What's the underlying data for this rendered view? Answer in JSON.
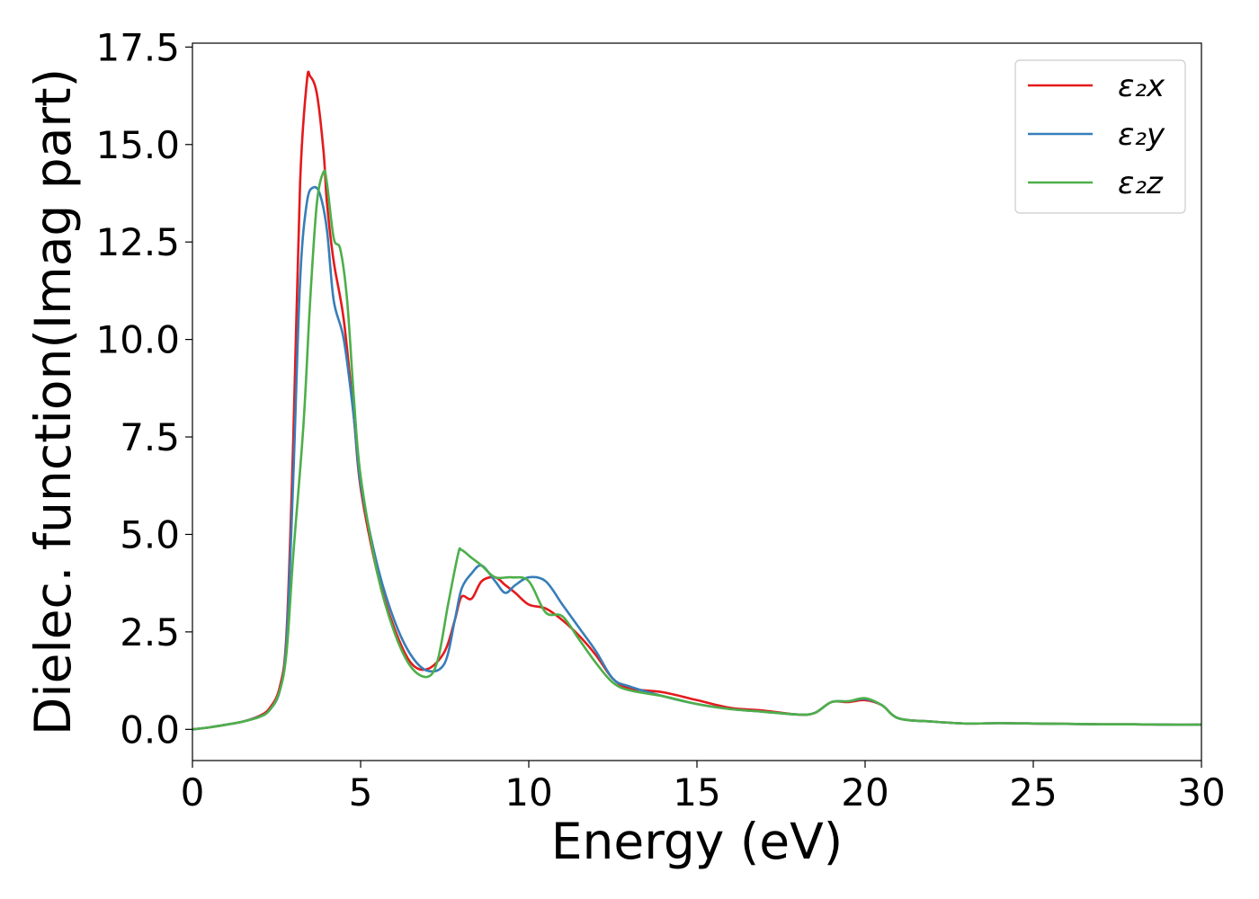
{
  "chart_data": {
    "type": "line",
    "title": "",
    "xlabel": "Energy (eV)",
    "ylabel": "Dielec. function(Imag part)",
    "xlim": [
      0,
      30
    ],
    "ylim": [
      -0.8,
      17.6
    ],
    "xticks": [
      0,
      5,
      10,
      15,
      20,
      25,
      30
    ],
    "xtick_labels": [
      "0",
      "5",
      "10",
      "15",
      "20",
      "25",
      "30"
    ],
    "yticks": [
      0.0,
      2.5,
      5.0,
      7.5,
      10.0,
      12.5,
      15.0,
      17.5
    ],
    "ytick_labels": [
      "0.0",
      "2.5",
      "5.0",
      "7.5",
      "10.0",
      "12.5",
      "15.0",
      "17.5"
    ],
    "grid": false,
    "legend_position": "top-right",
    "series": [
      {
        "name": "ε₂x",
        "color": "#e41a1c",
        "x": [
          0,
          0.5,
          1.0,
          1.5,
          2.0,
          2.3,
          2.6,
          2.8,
          3.0,
          3.2,
          3.4,
          3.5,
          3.7,
          3.9,
          4.0,
          4.2,
          4.5,
          4.8,
          5.0,
          5.5,
          6.0,
          6.5,
          7.0,
          7.5,
          7.8,
          8.0,
          8.3,
          8.6,
          9.0,
          9.3,
          9.6,
          10.0,
          10.5,
          11.0,
          11.5,
          12.0,
          12.5,
          13.0,
          14.0,
          15.0,
          16.0,
          17.0,
          18.0,
          18.5,
          19.0,
          19.5,
          20.0,
          20.5,
          21.0,
          22.0,
          23.0,
          24.0,
          25.0,
          26.0,
          27.0,
          28.0,
          29.0,
          30.0
        ],
        "y": [
          0.0,
          0.05,
          0.12,
          0.2,
          0.35,
          0.55,
          1.1,
          2.5,
          7.5,
          14.0,
          16.6,
          16.75,
          16.3,
          14.8,
          13.5,
          12.0,
          10.5,
          8.0,
          6.2,
          4.0,
          2.6,
          1.7,
          1.55,
          2.0,
          2.8,
          3.4,
          3.35,
          3.8,
          3.9,
          3.7,
          3.5,
          3.2,
          3.1,
          2.8,
          2.4,
          1.9,
          1.3,
          1.05,
          0.95,
          0.75,
          0.55,
          0.48,
          0.38,
          0.42,
          0.7,
          0.7,
          0.75,
          0.62,
          0.28,
          0.2,
          0.15,
          0.16,
          0.15,
          0.14,
          0.13,
          0.13,
          0.12,
          0.12
        ]
      },
      {
        "name": "ε₂y",
        "color": "#377eb8",
        "x": [
          0,
          0.5,
          1.0,
          1.5,
          2.0,
          2.3,
          2.6,
          2.8,
          3.0,
          3.2,
          3.4,
          3.6,
          3.8,
          4.0,
          4.2,
          4.5,
          4.8,
          5.0,
          5.5,
          6.0,
          6.5,
          7.0,
          7.5,
          7.8,
          8.0,
          8.3,
          8.6,
          9.0,
          9.3,
          9.6,
          10.0,
          10.5,
          11.0,
          11.5,
          12.0,
          12.5,
          13.0,
          14.0,
          15.0,
          16.0,
          17.0,
          18.0,
          18.5,
          19.0,
          19.5,
          20.0,
          20.5,
          21.0,
          22.0,
          23.0,
          24.0,
          25.0,
          26.0,
          27.0,
          28.0,
          29.0,
          30.0
        ],
        "y": [
          0.0,
          0.05,
          0.12,
          0.2,
          0.33,
          0.5,
          1.0,
          2.3,
          6.5,
          11.5,
          13.5,
          13.9,
          13.7,
          12.8,
          11.0,
          10.0,
          8.0,
          6.3,
          4.2,
          2.8,
          1.9,
          1.5,
          1.7,
          2.8,
          3.6,
          4.0,
          4.2,
          3.8,
          3.5,
          3.7,
          3.9,
          3.8,
          3.2,
          2.6,
          2.0,
          1.3,
          1.1,
          0.85,
          0.65,
          0.52,
          0.45,
          0.38,
          0.42,
          0.7,
          0.72,
          0.78,
          0.62,
          0.28,
          0.2,
          0.15,
          0.16,
          0.15,
          0.14,
          0.13,
          0.13,
          0.12,
          0.12
        ]
      },
      {
        "name": "ε₂z",
        "color": "#4daf4a",
        "x": [
          0,
          0.5,
          1.0,
          1.5,
          2.0,
          2.3,
          2.6,
          2.8,
          3.0,
          3.3,
          3.5,
          3.7,
          3.9,
          4.0,
          4.2,
          4.4,
          4.6,
          4.8,
          5.0,
          5.5,
          6.0,
          6.5,
          7.0,
          7.3,
          7.6,
          7.9,
          8.0,
          8.3,
          8.6,
          9.0,
          9.5,
          10.0,
          10.5,
          11.0,
          11.5,
          12.0,
          12.5,
          13.0,
          14.0,
          15.0,
          16.0,
          17.0,
          18.0,
          18.5,
          19.0,
          19.5,
          20.0,
          20.5,
          21.0,
          22.0,
          23.0,
          24.0,
          25.0,
          26.0,
          27.0,
          28.0,
          29.0,
          30.0
        ],
        "y": [
          0.0,
          0.05,
          0.12,
          0.2,
          0.32,
          0.5,
          1.0,
          2.0,
          4.5,
          7.8,
          11.0,
          13.5,
          14.3,
          14.0,
          12.6,
          12.3,
          11.0,
          8.5,
          6.5,
          4.0,
          2.5,
          1.6,
          1.35,
          1.8,
          3.2,
          4.5,
          4.6,
          4.4,
          4.2,
          3.9,
          3.9,
          3.8,
          3.0,
          2.9,
          2.3,
          1.7,
          1.2,
          1.0,
          0.85,
          0.65,
          0.52,
          0.45,
          0.38,
          0.42,
          0.7,
          0.72,
          0.8,
          0.62,
          0.28,
          0.2,
          0.15,
          0.16,
          0.15,
          0.14,
          0.13,
          0.13,
          0.12,
          0.12
        ]
      }
    ]
  }
}
